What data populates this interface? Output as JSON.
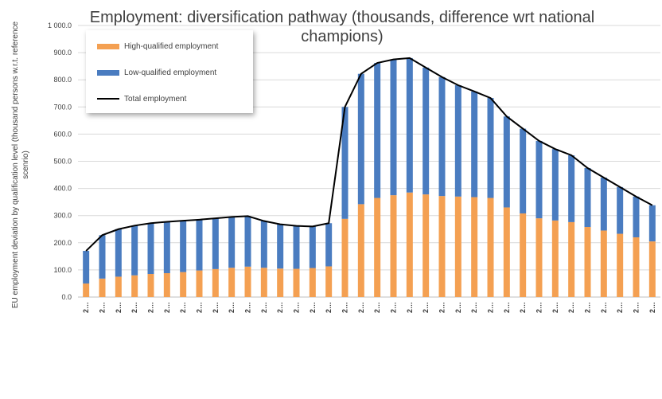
{
  "chart_data": {
    "type": "stacked-bar-line",
    "title": "Employment: diversification pathway (thousands, difference wrt national champions)",
    "y_label": "EU employment deviation by qualification level (thousand persons w.r.t. reference scenrio)",
    "categories": [
      "2…",
      "2…",
      "2…",
      "2…",
      "2…",
      "2…",
      "2…",
      "2…",
      "2…",
      "2…",
      "2…",
      "2…",
      "2…",
      "2…",
      "2…",
      "2…",
      "2…",
      "2…",
      "2…",
      "2…",
      "2…",
      "2…",
      "2…",
      "2…",
      "2…",
      "2…",
      "2…",
      "2…",
      "2…",
      "2…",
      "2…",
      "2…",
      "2…",
      "2…",
      "2…",
      "2…"
    ],
    "series": [
      {
        "name": "High-qualified employment",
        "color": "#f4a052",
        "values": [
          50,
          68,
          75,
          80,
          85,
          88,
          92,
          98,
          103,
          108,
          112,
          108,
          105,
          104,
          107,
          113,
          288,
          342,
          365,
          375,
          385,
          378,
          372,
          370,
          368,
          365,
          330,
          308,
          290,
          282,
          276,
          258,
          245,
          233,
          220,
          205
        ]
      },
      {
        "name": "Low-qualified employment",
        "color": "#4a7cc0",
        "values": [
          120,
          160,
          175,
          183,
          187,
          189,
          189,
          187,
          187,
          187,
          186,
          172,
          163,
          158,
          153,
          159,
          412,
          480,
          497,
          500,
          495,
          467,
          438,
          410,
          389,
          368,
          335,
          312,
          285,
          263,
          246,
          217,
          195,
          172,
          150,
          133
        ]
      },
      {
        "name": "Total employment",
        "color": "#000000",
        "type": "line",
        "values": [
          170,
          228,
          250,
          263,
          272,
          277,
          281,
          285,
          290,
          295,
          298,
          280,
          268,
          262,
          260,
          272,
          700,
          822,
          862,
          875,
          880,
          845,
          810,
          780,
          757,
          733,
          665,
          620,
          575,
          545,
          522,
          475,
          440,
          405,
          370,
          338
        ]
      }
    ],
    "ylim": [
      0,
      1000
    ],
    "yticks": [
      {
        "value": 0,
        "label": "0.0"
      },
      {
        "value": 100,
        "label": "100.0"
      },
      {
        "value": 200,
        "label": "200.0"
      },
      {
        "value": 300,
        "label": "300.0"
      },
      {
        "value": 400,
        "label": "400.0"
      },
      {
        "value": 500,
        "label": "500.0"
      },
      {
        "value": 600,
        "label": "600.0"
      },
      {
        "value": 700,
        "label": "700.0"
      },
      {
        "value": 800,
        "label": "800.0"
      },
      {
        "value": 900,
        "label": "900.0"
      },
      {
        "value": 1000,
        "label": "1 000.0"
      }
    ],
    "grid": true
  }
}
